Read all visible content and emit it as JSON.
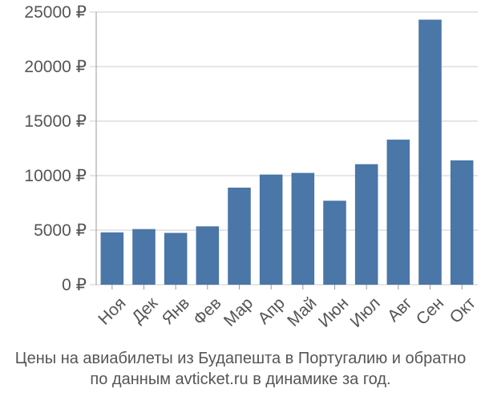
{
  "chart_data": {
    "type": "bar",
    "categories": [
      "Ноя",
      "Дек",
      "Янв",
      "Фев",
      "Мар",
      "Апр",
      "Май",
      "Июн",
      "Июл",
      "Авг",
      "Сен",
      "Окт"
    ],
    "values": [
      4800,
      5100,
      4750,
      5350,
      8900,
      10100,
      10250,
      7700,
      11050,
      13300,
      24300,
      11400
    ],
    "y_ticks": [
      0,
      5000,
      10000,
      15000,
      20000,
      25000
    ],
    "y_tick_labels": [
      "0 ₽",
      "5000 ₽",
      "10000 ₽",
      "15000 ₽",
      "20000 ₽",
      "25000 ₽"
    ],
    "ylim": [
      0,
      25000
    ],
    "grid": "horizontal",
    "bar_color": "#4a76a8",
    "grid_color": "#cccccc",
    "axis_color": "#999999"
  },
  "caption": {
    "line1": "Цены на авиабилеты из Будапешта в Португалию и обратно",
    "line2": "по данным avticket.ru в динамике за год."
  }
}
